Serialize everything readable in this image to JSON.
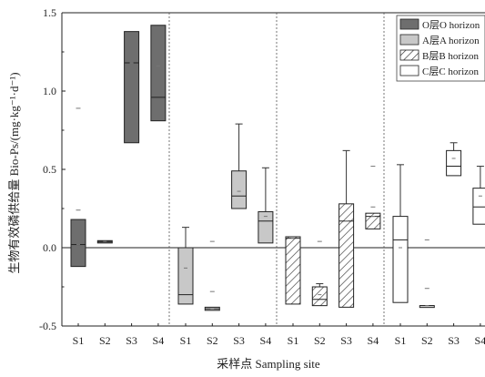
{
  "chart_data": {
    "type": "box",
    "xlabel": "采样点 Sampling site",
    "ylabel": "生物有效磷供给量 Bio-Ps/(mg·kg⁻¹·d⁻¹)",
    "ylim": [
      -0.5,
      1.5
    ],
    "yticks": [
      -0.5,
      0.0,
      0.5,
      1.0,
      1.5
    ],
    "ytick_labels": [
      "-0.5",
      "0.0",
      "0.5",
      "1.0",
      "1.5"
    ],
    "zero_line": true,
    "sites": [
      "S1",
      "S2",
      "S3",
      "S4"
    ],
    "legend": {
      "placement": "top-right",
      "entries": [
        {
          "key": "O",
          "label": "O层O horizon",
          "fill": "#6e6e6e",
          "pattern": "solid"
        },
        {
          "key": "A",
          "label": "A层A horizon",
          "fill": "#c8c8c8",
          "pattern": "solid"
        },
        {
          "key": "B",
          "label": "B层B horizon",
          "fill": "#ffffff",
          "pattern": "hatch"
        },
        {
          "key": "C",
          "label": "C层C horizon",
          "fill": "#ffffff",
          "pattern": "solid"
        }
      ]
    },
    "groups": [
      {
        "horizon": "O",
        "boxes": [
          {
            "site": "S1",
            "q1": -0.12,
            "median": 0.02,
            "q3": 0.18,
            "mean": 0.02,
            "whisker_low": null,
            "whisker_high": null,
            "outliers": [
              0.89,
              0.24
            ]
          },
          {
            "site": "S2",
            "q1": 0.03,
            "median": 0.04,
            "q3": 0.045,
            "mean": 0.04,
            "whisker_low": null,
            "whisker_high": null,
            "outliers": []
          },
          {
            "site": "S3",
            "q1": 0.67,
            "median": 1.18,
            "q3": 1.38,
            "mean": 1.18,
            "whisker_low": null,
            "whisker_high": null,
            "outliers": []
          },
          {
            "site": "S4",
            "q1": 0.81,
            "median": 0.96,
            "q3": 1.42,
            "mean": 1.16,
            "whisker_low": null,
            "whisker_high": null,
            "outliers": []
          }
        ]
      },
      {
        "horizon": "A",
        "boxes": [
          {
            "site": "S1",
            "q1": -0.36,
            "median": -0.3,
            "q3": 0.0,
            "mean": -0.13,
            "whisker_low": null,
            "whisker_high": 0.13,
            "outliers": []
          },
          {
            "site": "S2",
            "q1": -0.4,
            "median": -0.39,
            "q3": -0.38,
            "mean": -0.39,
            "whisker_low": null,
            "whisker_high": null,
            "outliers": [
              -0.28,
              0.04
            ]
          },
          {
            "site": "S3",
            "q1": 0.25,
            "median": 0.33,
            "q3": 0.49,
            "mean": 0.36,
            "whisker_low": null,
            "whisker_high": 0.79,
            "outliers": []
          },
          {
            "site": "S4",
            "q1": 0.03,
            "median": 0.17,
            "q3": 0.23,
            "mean": 0.2,
            "whisker_low": null,
            "whisker_high": 0.51,
            "outliers": []
          }
        ]
      },
      {
        "horizon": "B",
        "boxes": [
          {
            "site": "S1",
            "q1": -0.36,
            "median": 0.06,
            "q3": 0.07,
            "mean": 0.06,
            "whisker_low": null,
            "whisker_high": null,
            "outliers": []
          },
          {
            "site": "S2",
            "q1": -0.37,
            "median": -0.33,
            "q3": -0.25,
            "mean": -0.3,
            "whisker_low": null,
            "whisker_high": -0.23,
            "outliers": [
              0.04
            ]
          },
          {
            "site": "S3",
            "q1": -0.38,
            "median": 0.17,
            "q3": 0.28,
            "mean": 0.17,
            "whisker_low": null,
            "whisker_high": 0.62,
            "outliers": []
          },
          {
            "site": "S4",
            "q1": 0.12,
            "median": 0.2,
            "q3": 0.22,
            "mean": 0.2,
            "whisker_low": null,
            "whisker_high": null,
            "outliers": [
              0.52,
              0.26
            ]
          }
        ]
      },
      {
        "horizon": "C",
        "boxes": [
          {
            "site": "S1",
            "q1": -0.35,
            "median": 0.05,
            "q3": 0.2,
            "mean": 0.0,
            "whisker_low": null,
            "whisker_high": 0.53,
            "outliers": []
          },
          {
            "site": "S2",
            "q1": -0.37,
            "median": -0.37,
            "q3": -0.37,
            "mean": -0.37,
            "whisker_low": null,
            "whisker_high": null,
            "outliers": [
              0.05,
              -0.26
            ]
          },
          {
            "site": "S3",
            "q1": 0.46,
            "median": 0.52,
            "q3": 0.62,
            "mean": 0.57,
            "whisker_low": null,
            "whisker_high": 0.67,
            "outliers": []
          },
          {
            "site": "S4",
            "q1": 0.15,
            "median": 0.26,
            "q3": 0.38,
            "mean": 0.33,
            "whisker_low": null,
            "whisker_high": 0.52,
            "outliers": []
          }
        ]
      }
    ]
  }
}
